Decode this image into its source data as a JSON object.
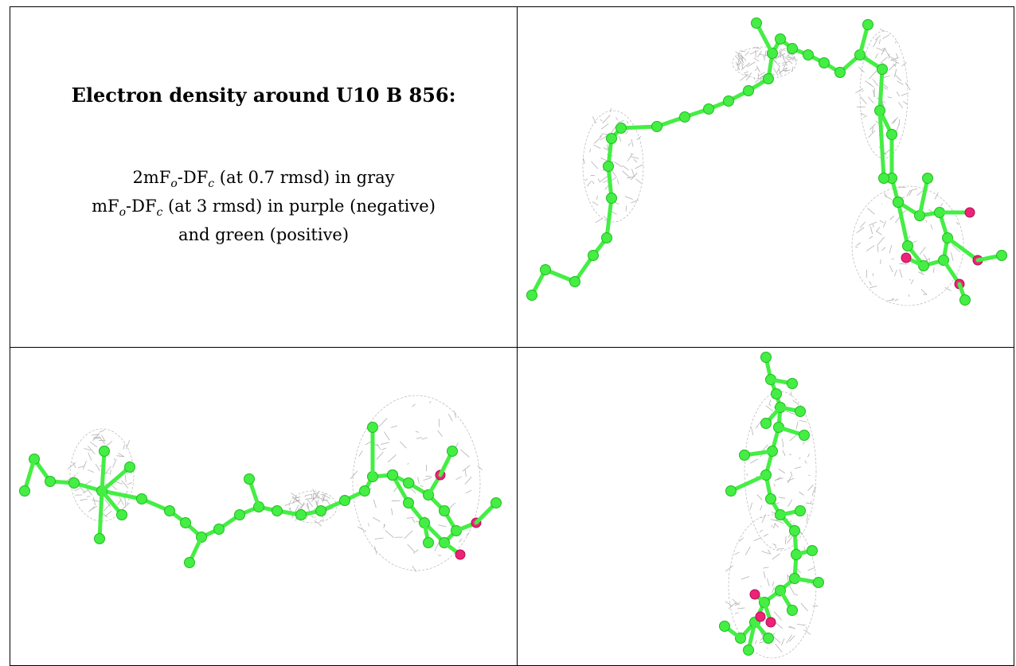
{
  "caption": {
    "title": "Electron density around U10 B 856:",
    "line1": {
      "prefix": "2mF",
      "sub1": "o",
      "mid": "-DF",
      "sub2": "c",
      "suffix": " (at 0.7 rmsd) in gray"
    },
    "line2": {
      "prefix": "mF",
      "sub1": "o",
      "mid": "-DF",
      "sub2": "c",
      "suffix": " (at 3 rmsd) in purple (negative)"
    },
    "line3": "and green (positive)"
  },
  "colors": {
    "carbon": "#44ee44",
    "oxygen": "#ee2277",
    "mesh": "#aaaaaa",
    "border": "#000000"
  },
  "panels": [
    "view-top-right",
    "view-bottom-left",
    "view-bottom-right"
  ]
}
